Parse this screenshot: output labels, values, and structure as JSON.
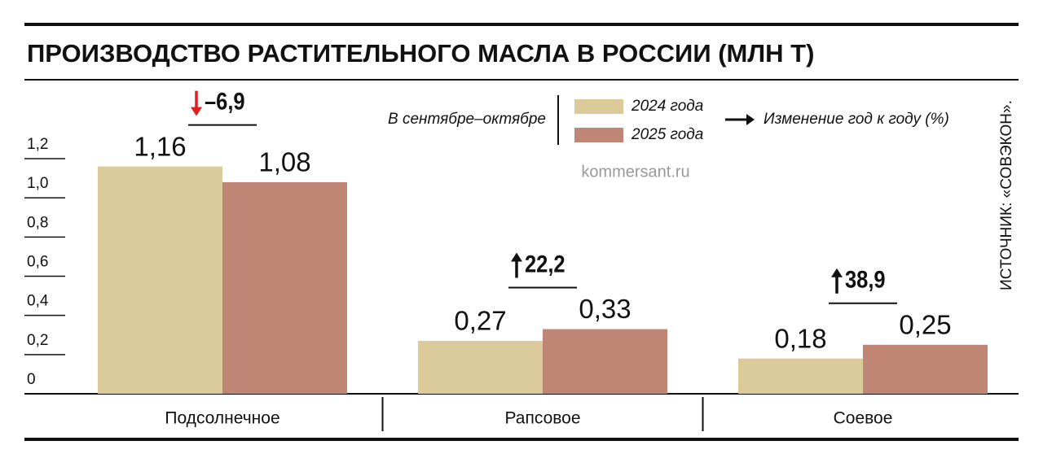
{
  "chart_data": {
    "type": "bar",
    "title": "ПРОИЗВОДСТВО РАСТИТЕЛЬНОГО МАСЛА В РОССИИ (МЛН Т)",
    "legend_title": "В сентябре–октябре",
    "change_note": "Изменение год к году (%)",
    "source": "ИСТОЧНИК: «СОВЭКОН».",
    "watermark": "kommersant.ru",
    "categories": [
      "Подсолнечное",
      "Рапсовое",
      "Соевое"
    ],
    "series": [
      {
        "name": "2024 года",
        "color": "#dccb9a",
        "values": [
          1.16,
          0.27,
          0.18
        ],
        "value_labels": [
          "1,16",
          "0,27",
          "0,18"
        ]
      },
      {
        "name": "2025 года",
        "color": "#bf8676",
        "values": [
          1.08,
          0.33,
          0.25
        ],
        "value_labels": [
          "1,08",
          "0,33",
          "0,25"
        ]
      }
    ],
    "change": {
      "values": [
        -6.9,
        22.2,
        38.9
      ],
      "value_labels": [
        "–6,9",
        "22,2",
        "38,9"
      ]
    },
    "ylim": [
      0,
      1.2
    ],
    "yticks": [
      {
        "value": 0,
        "label": "0"
      },
      {
        "value": 0.2,
        "label": "0,2"
      },
      {
        "value": 0.4,
        "label": "0,4"
      },
      {
        "value": 0.6,
        "label": "0,6"
      },
      {
        "value": 0.8,
        "label": "0,8"
      },
      {
        "value": 1.0,
        "label": "1,0"
      },
      {
        "value": 1.2,
        "label": "1,2"
      }
    ]
  }
}
